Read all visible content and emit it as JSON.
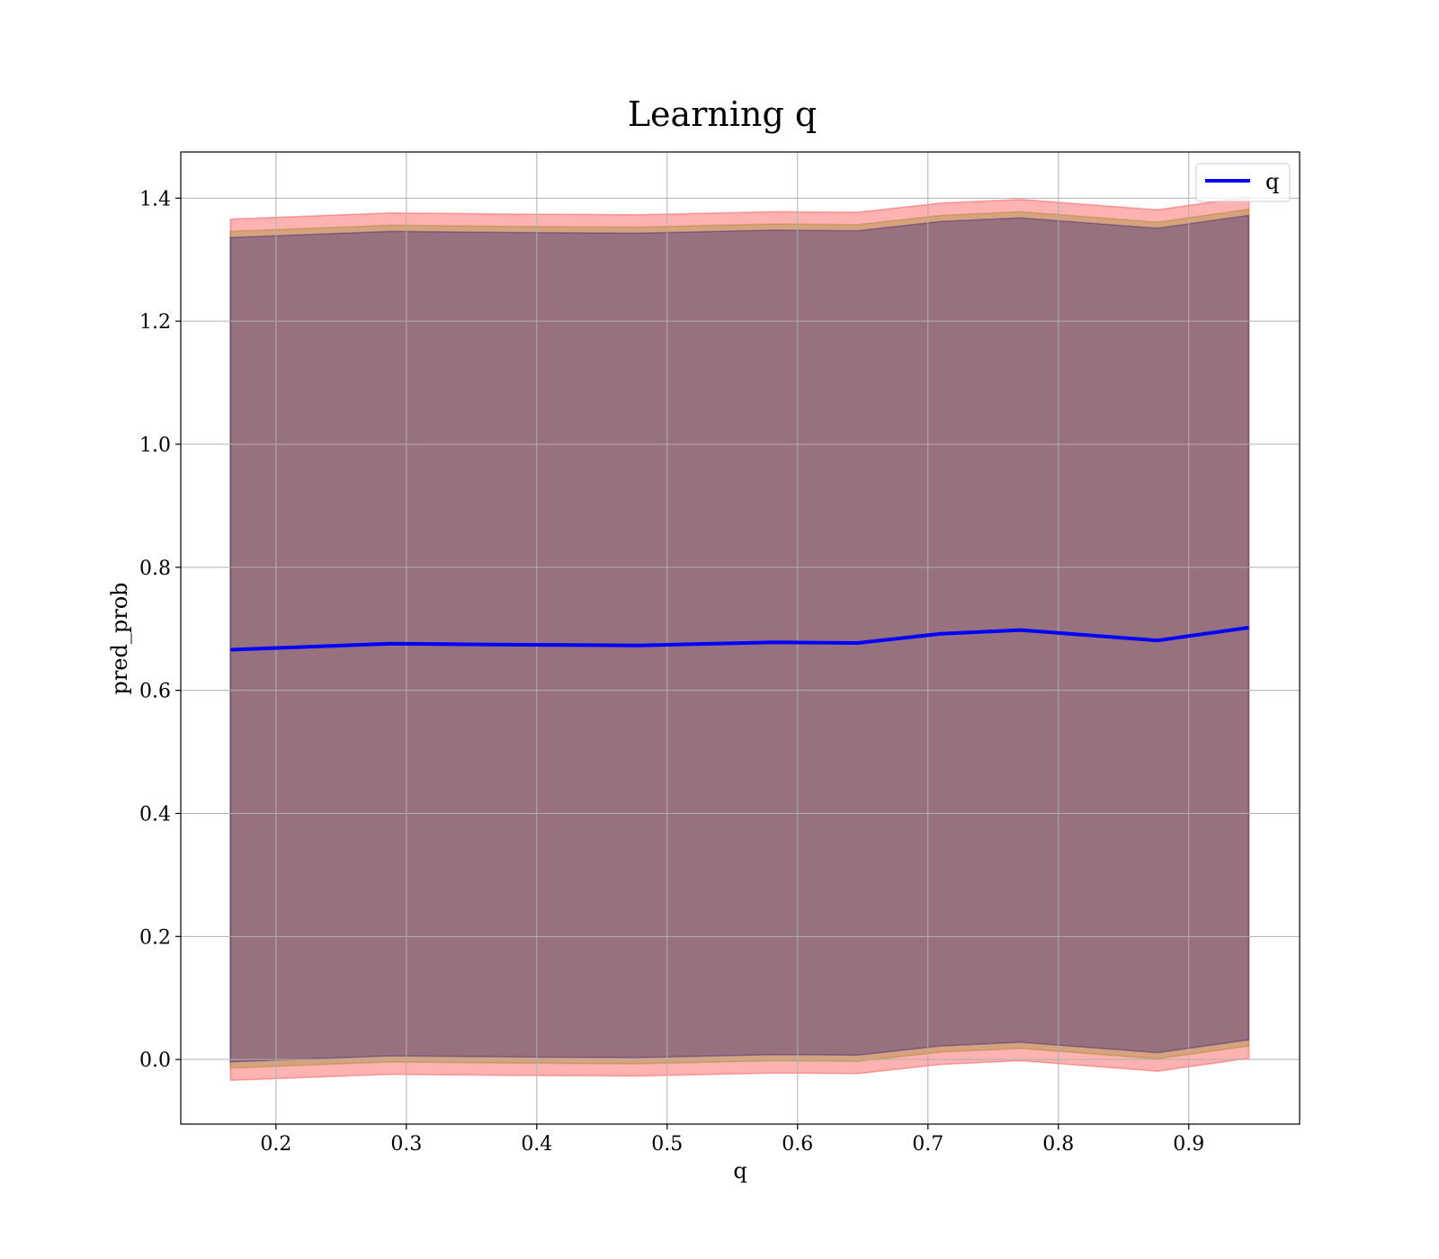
{
  "chart_data": {
    "type": "line",
    "title": "Learning q",
    "xlabel": "q",
    "ylabel": "pred_prob",
    "xlim": [
      0.127,
      0.985
    ],
    "ylim": [
      -0.105,
      1.475
    ],
    "xticks": [
      0.2,
      0.3,
      0.4,
      0.5,
      0.6,
      0.7,
      0.8,
      0.9
    ],
    "xtick_labels": [
      "0.2",
      "0.3",
      "0.4",
      "0.5",
      "0.6",
      "0.7",
      "0.8",
      "0.9"
    ],
    "yticks": [
      0.0,
      0.2,
      0.4,
      0.6,
      0.8,
      1.0,
      1.2,
      1.4
    ],
    "ytick_labels": [
      "0.0",
      "0.2",
      "0.4",
      "0.6",
      "0.8",
      "1.0",
      "1.2",
      "1.4"
    ],
    "grid": true,
    "legend_position": "top-right",
    "x": [
      0.165,
      0.288,
      0.388,
      0.478,
      0.582,
      0.646,
      0.71,
      0.771,
      0.876,
      0.946
    ],
    "series": [
      {
        "name": "q",
        "values": [
          0.666,
          0.676,
          0.674,
          0.673,
          0.678,
          0.677,
          0.692,
          0.698,
          0.681,
          0.702
        ],
        "color": "#0000ff"
      }
    ],
    "bands": [
      {
        "color": "#ff0000",
        "opacity": 0.3,
        "upper": [
          1.366,
          1.376,
          1.374,
          1.373,
          1.378,
          1.377,
          1.392,
          1.398,
          1.381,
          1.402
        ],
        "lower": [
          -0.034,
          -0.024,
          -0.026,
          -0.027,
          -0.022,
          -0.023,
          -0.008,
          -0.002,
          -0.019,
          0.002
        ]
      },
      {
        "color": "#7f7f00",
        "opacity": 0.3,
        "upper": [
          1.346,
          1.356,
          1.354,
          1.353,
          1.358,
          1.357,
          1.372,
          1.378,
          1.361,
          1.382
        ],
        "lower": [
          -0.014,
          -0.004,
          -0.006,
          -0.007,
          -0.002,
          -0.003,
          0.012,
          0.018,
          0.001,
          0.022
        ]
      },
      {
        "color": "#000080",
        "opacity": 0.3,
        "upper": [
          1.336,
          1.346,
          1.344,
          1.343,
          1.348,
          1.347,
          1.362,
          1.368,
          1.351,
          1.372
        ],
        "lower": [
          -0.004,
          0.006,
          0.004,
          0.003,
          0.008,
          0.007,
          0.022,
          0.028,
          0.011,
          0.032
        ]
      }
    ]
  }
}
